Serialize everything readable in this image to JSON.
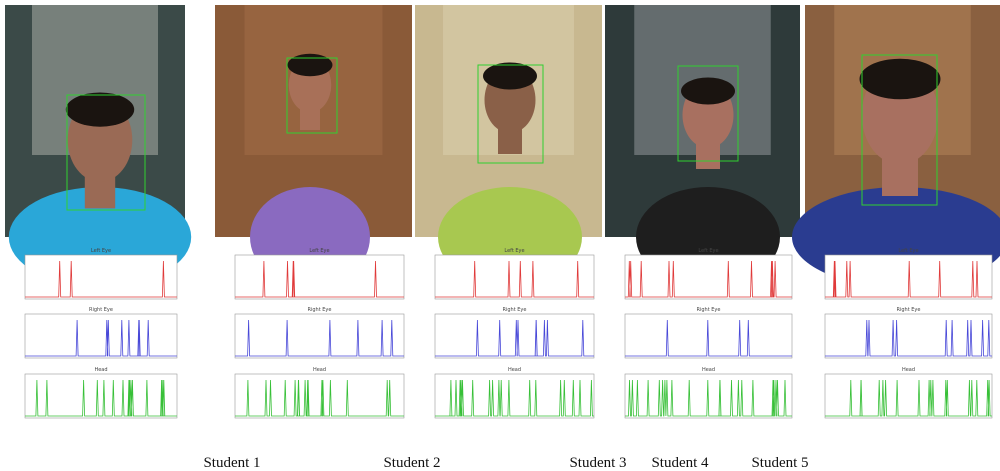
{
  "students": [
    {
      "label": "Student 1",
      "plots": [
        "Left Eye",
        "Right Eye",
        "Head"
      ]
    },
    {
      "label": "Student 2",
      "plots": [
        "Left Eye",
        "Right Eye",
        "Head"
      ]
    },
    {
      "label": "Student 3",
      "plots": [
        "Left Eye",
        "Right Eye",
        "Head"
      ]
    },
    {
      "label": "Student 4",
      "plots": [
        "Left Eye",
        "Right Eye",
        "Head"
      ]
    },
    {
      "label": "Student 5",
      "plots": [
        "Left Eye",
        "Right Eye",
        "Head"
      ]
    }
  ]
}
